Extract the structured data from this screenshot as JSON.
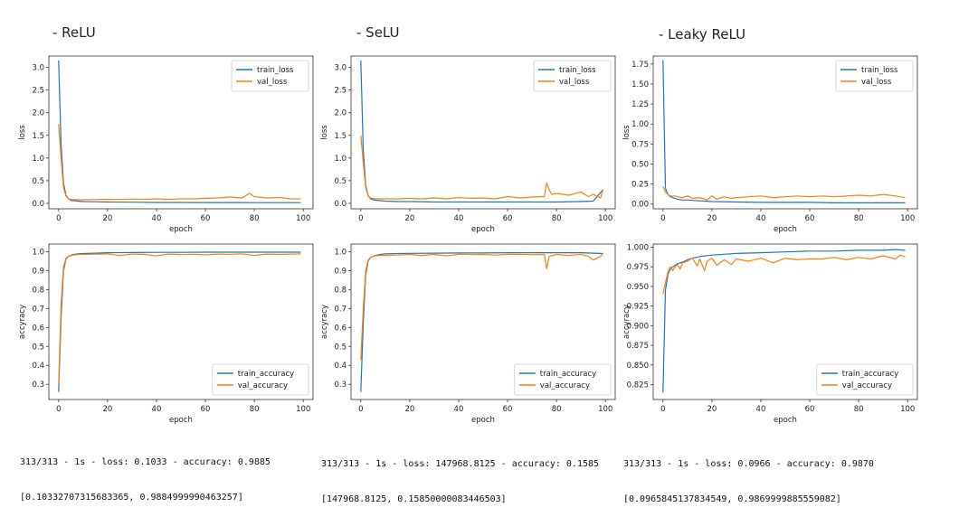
{
  "panels": [
    {
      "heading": "- ReLU",
      "result_line1": "313/313 - 1s - loss: 0.1033 - accuracy: 0.9885",
      "result_line2": "[0.10332707315683365, 0.9884999990463257]"
    },
    {
      "heading": "- SeLU",
      "result_line1": "313/313 - 1s - loss: 147968.8125 - accuracy: 0.1585",
      "result_line2": "[147968.8125, 0.15850000083446503]"
    },
    {
      "heading": "- Leaky ReLU",
      "result_line1": "313/313 - 1s - loss: 0.0966 - accuracy: 0.9870",
      "result_line2": "[0.0965845137834549, 0.9869999885559082]"
    }
  ],
  "colors": {
    "train": "#1f77b4",
    "val": "#ff7f0e"
  },
  "chart_data": [
    {
      "type": "line",
      "xlabel": "epoch",
      "ylabel": "loss",
      "xlim": [
        -4,
        104
      ],
      "ylim": [
        -0.12,
        3.25
      ],
      "xticks": [
        0,
        20,
        40,
        60,
        80,
        100
      ],
      "yticks": [
        0.0,
        0.5,
        1.0,
        1.5,
        2.0,
        2.5,
        3.0
      ],
      "ytick_labels": [
        "0.0",
        "0.5",
        "1.0",
        "1.5",
        "2.0",
        "2.5",
        "3.0"
      ],
      "legend": "top-right",
      "series": [
        {
          "name": "train_loss",
          "color": "#1f77b4",
          "x": [
            0,
            1,
            2,
            3,
            4,
            5,
            6,
            8,
            10,
            15,
            20,
            30,
            40,
            50,
            60,
            70,
            80,
            90,
            99
          ],
          "y": [
            3.15,
            1.3,
            0.45,
            0.18,
            0.1,
            0.07,
            0.06,
            0.05,
            0.04,
            0.035,
            0.03,
            0.025,
            0.02,
            0.02,
            0.018,
            0.017,
            0.016,
            0.015,
            0.015
          ]
        },
        {
          "name": "val_loss",
          "color": "#ff7f0e",
          "x": [
            0,
            1,
            2,
            3,
            4,
            5,
            6,
            8,
            10,
            15,
            20,
            25,
            30,
            35,
            40,
            45,
            50,
            55,
            60,
            65,
            70,
            75,
            78,
            80,
            85,
            90,
            95,
            99
          ],
          "y": [
            1.75,
            1.0,
            0.35,
            0.16,
            0.1,
            0.09,
            0.085,
            0.08,
            0.08,
            0.085,
            0.09,
            0.085,
            0.095,
            0.09,
            0.1,
            0.09,
            0.1,
            0.1,
            0.11,
            0.12,
            0.14,
            0.12,
            0.22,
            0.15,
            0.12,
            0.13,
            0.1,
            0.1
          ]
        }
      ]
    },
    {
      "type": "line",
      "xlabel": "epoch",
      "ylabel": "loss",
      "xlim": [
        -4,
        104
      ],
      "ylim": [
        -0.12,
        3.25
      ],
      "xticks": [
        0,
        20,
        40,
        60,
        80,
        100
      ],
      "yticks": [
        0.0,
        0.5,
        1.0,
        1.5,
        2.0,
        2.5,
        3.0
      ],
      "ytick_labels": [
        "0.0",
        "0.5",
        "1.0",
        "1.5",
        "2.0",
        "2.5",
        "3.0"
      ],
      "legend": "top-right",
      "series": [
        {
          "name": "train_loss",
          "color": "#1f77b4",
          "x": [
            0,
            1,
            2,
            3,
            4,
            5,
            6,
            8,
            10,
            15,
            20,
            30,
            40,
            50,
            60,
            70,
            80,
            90,
            95,
            99
          ],
          "y": [
            3.15,
            1.2,
            0.4,
            0.17,
            0.1,
            0.08,
            0.07,
            0.06,
            0.05,
            0.04,
            0.04,
            0.03,
            0.03,
            0.03,
            0.03,
            0.03,
            0.03,
            0.04,
            0.05,
            0.3
          ]
        },
        {
          "name": "val_loss",
          "color": "#ff7f0e",
          "x": [
            0,
            1,
            2,
            3,
            4,
            5,
            6,
            8,
            10,
            15,
            20,
            25,
            30,
            35,
            40,
            45,
            50,
            55,
            60,
            65,
            70,
            75,
            76,
            77,
            78,
            80,
            85,
            90,
            93,
            95,
            98,
            99
          ],
          "y": [
            1.5,
            0.9,
            0.35,
            0.16,
            0.12,
            0.11,
            0.1,
            0.1,
            0.1,
            0.1,
            0.11,
            0.1,
            0.12,
            0.1,
            0.13,
            0.11,
            0.12,
            0.1,
            0.15,
            0.12,
            0.14,
            0.15,
            0.45,
            0.3,
            0.2,
            0.22,
            0.18,
            0.25,
            0.15,
            0.2,
            0.12,
            0.3
          ]
        }
      ]
    },
    {
      "type": "line",
      "xlabel": "epoch",
      "ylabel": "loss",
      "xlim": [
        -4,
        104
      ],
      "ylim": [
        -0.06,
        1.85
      ],
      "xticks": [
        0,
        20,
        40,
        60,
        80,
        100
      ],
      "yticks": [
        0.0,
        0.25,
        0.5,
        0.75,
        1.0,
        1.25,
        1.5,
        1.75
      ],
      "ytick_labels": [
        "0.00",
        "0.25",
        "0.50",
        "0.75",
        "1.00",
        "1.25",
        "1.50",
        "1.75"
      ],
      "legend": "top-right",
      "series": [
        {
          "name": "train_loss",
          "color": "#1f77b4",
          "x": [
            0,
            1,
            2,
            3,
            4,
            5,
            6,
            8,
            10,
            15,
            20,
            30,
            40,
            50,
            60,
            70,
            80,
            90,
            99
          ],
          "y": [
            1.8,
            0.2,
            0.12,
            0.09,
            0.08,
            0.07,
            0.06,
            0.05,
            0.05,
            0.04,
            0.03,
            0.025,
            0.02,
            0.02,
            0.02,
            0.015,
            0.015,
            0.015,
            0.015
          ]
        },
        {
          "name": "val_loss",
          "color": "#ff7f0e",
          "x": [
            0,
            1,
            2,
            3,
            4,
            5,
            6,
            8,
            10,
            12,
            15,
            18,
            20,
            22,
            25,
            28,
            30,
            35,
            40,
            45,
            50,
            55,
            60,
            65,
            70,
            75,
            80,
            85,
            90,
            95,
            99
          ],
          "y": [
            0.22,
            0.15,
            0.12,
            0.1,
            0.1,
            0.1,
            0.09,
            0.08,
            0.1,
            0.07,
            0.08,
            0.05,
            0.1,
            0.06,
            0.09,
            0.07,
            0.08,
            0.09,
            0.1,
            0.08,
            0.09,
            0.1,
            0.09,
            0.1,
            0.09,
            0.1,
            0.11,
            0.1,
            0.12,
            0.1,
            0.08
          ]
        }
      ]
    },
    {
      "type": "line",
      "xlabel": "epoch",
      "ylabel": "accyracy",
      "xlim": [
        -4,
        104
      ],
      "ylim": [
        0.22,
        1.04
      ],
      "xticks": [
        0,
        20,
        40,
        60,
        80,
        100
      ],
      "yticks": [
        0.3,
        0.4,
        0.5,
        0.6,
        0.7,
        0.8,
        0.9,
        1.0
      ],
      "ytick_labels": [
        "0.3",
        "0.4",
        "0.5",
        "0.6",
        "0.7",
        "0.8",
        "0.9",
        "1.0"
      ],
      "legend": "bottom-right",
      "series": [
        {
          "name": "train_accuracy",
          "color": "#1f77b4",
          "x": [
            0,
            1,
            2,
            3,
            4,
            5,
            6,
            8,
            10,
            15,
            20,
            30,
            40,
            50,
            60,
            70,
            80,
            90,
            99
          ],
          "y": [
            0.26,
            0.65,
            0.9,
            0.96,
            0.975,
            0.98,
            0.985,
            0.988,
            0.99,
            0.992,
            0.994,
            0.995,
            0.996,
            0.996,
            0.997,
            0.997,
            0.997,
            0.997,
            0.997
          ]
        },
        {
          "name": "val_accuracy",
          "color": "#ff7f0e",
          "x": [
            0,
            1,
            2,
            3,
            4,
            5,
            6,
            8,
            10,
            15,
            20,
            25,
            30,
            35,
            40,
            45,
            50,
            55,
            60,
            65,
            70,
            75,
            80,
            85,
            90,
            95,
            99
          ],
          "y": [
            0.3,
            0.72,
            0.92,
            0.965,
            0.975,
            0.978,
            0.982,
            0.984,
            0.985,
            0.986,
            0.988,
            0.98,
            0.987,
            0.985,
            0.978,
            0.987,
            0.984,
            0.986,
            0.983,
            0.987,
            0.986,
            0.988,
            0.98,
            0.987,
            0.985,
            0.987,
            0.988
          ]
        }
      ]
    },
    {
      "type": "line",
      "xlabel": "epoch",
      "ylabel": "accyracy",
      "xlim": [
        -4,
        104
      ],
      "ylim": [
        0.22,
        1.04
      ],
      "xticks": [
        0,
        20,
        40,
        60,
        80,
        100
      ],
      "yticks": [
        0.3,
        0.4,
        0.5,
        0.6,
        0.7,
        0.8,
        0.9,
        1.0
      ],
      "ytick_labels": [
        "0.3",
        "0.4",
        "0.5",
        "0.6",
        "0.7",
        "0.8",
        "0.9",
        "1.0"
      ],
      "legend": "bottom-right",
      "series": [
        {
          "name": "train_accuracy",
          "color": "#1f77b4",
          "x": [
            0,
            1,
            2,
            3,
            4,
            5,
            6,
            8,
            10,
            15,
            20,
            30,
            40,
            50,
            60,
            70,
            80,
            90,
            99
          ],
          "y": [
            0.26,
            0.62,
            0.88,
            0.95,
            0.97,
            0.975,
            0.98,
            0.985,
            0.988,
            0.99,
            0.991,
            0.992,
            0.993,
            0.993,
            0.994,
            0.994,
            0.994,
            0.994,
            0.99
          ]
        },
        {
          "name": "val_accuracy",
          "color": "#ff7f0e",
          "x": [
            0,
            1,
            2,
            3,
            4,
            5,
            6,
            8,
            10,
            15,
            20,
            25,
            30,
            35,
            40,
            45,
            50,
            55,
            60,
            65,
            70,
            75,
            76,
            77,
            80,
            85,
            90,
            93,
            95,
            98,
            99
          ],
          "y": [
            0.43,
            0.7,
            0.9,
            0.955,
            0.97,
            0.975,
            0.978,
            0.98,
            0.98,
            0.982,
            0.985,
            0.98,
            0.985,
            0.978,
            0.986,
            0.984,
            0.985,
            0.982,
            0.986,
            0.985,
            0.984,
            0.985,
            0.91,
            0.975,
            0.985,
            0.98,
            0.985,
            0.975,
            0.955,
            0.975,
            0.99
          ]
        }
      ]
    },
    {
      "type": "line",
      "xlabel": "epoch",
      "ylabel": "accyracy",
      "xlim": [
        -4,
        104
      ],
      "ylim": [
        0.806,
        1.004
      ],
      "xticks": [
        0,
        20,
        40,
        60,
        80,
        100
      ],
      "yticks": [
        0.825,
        0.85,
        0.875,
        0.9,
        0.925,
        0.95,
        0.975,
        1.0
      ],
      "ytick_labels": [
        "0.825",
        "0.850",
        "0.875",
        "0.900",
        "0.925",
        "0.950",
        "0.975",
        "1.000"
      ],
      "legend": "bottom-right",
      "series": [
        {
          "name": "train_accuracy",
          "color": "#1f77b4",
          "x": [
            0,
            1,
            2,
            3,
            4,
            5,
            6,
            8,
            10,
            12,
            15,
            20,
            25,
            30,
            40,
            50,
            60,
            70,
            80,
            90,
            95,
            99
          ],
          "y": [
            0.815,
            0.945,
            0.965,
            0.972,
            0.975,
            0.977,
            0.979,
            0.981,
            0.984,
            0.986,
            0.988,
            0.99,
            0.991,
            0.992,
            0.993,
            0.994,
            0.995,
            0.995,
            0.996,
            0.996,
            0.997,
            0.996
          ]
        },
        {
          "name": "val_accuracy",
          "color": "#ff7f0e",
          "x": [
            0,
            1,
            2,
            3,
            4,
            5,
            6,
            7,
            8,
            10,
            12,
            14,
            15,
            17,
            18,
            20,
            22,
            25,
            28,
            30,
            35,
            40,
            45,
            50,
            55,
            60,
            65,
            70,
            75,
            80,
            85,
            90,
            95,
            97,
            99
          ],
          "y": [
            0.94,
            0.955,
            0.968,
            0.975,
            0.97,
            0.975,
            0.978,
            0.972,
            0.98,
            0.982,
            0.986,
            0.976,
            0.985,
            0.97,
            0.982,
            0.986,
            0.977,
            0.984,
            0.978,
            0.985,
            0.982,
            0.986,
            0.98,
            0.986,
            0.984,
            0.985,
            0.985,
            0.987,
            0.984,
            0.987,
            0.985,
            0.989,
            0.985,
            0.99,
            0.988
          ]
        }
      ]
    }
  ]
}
